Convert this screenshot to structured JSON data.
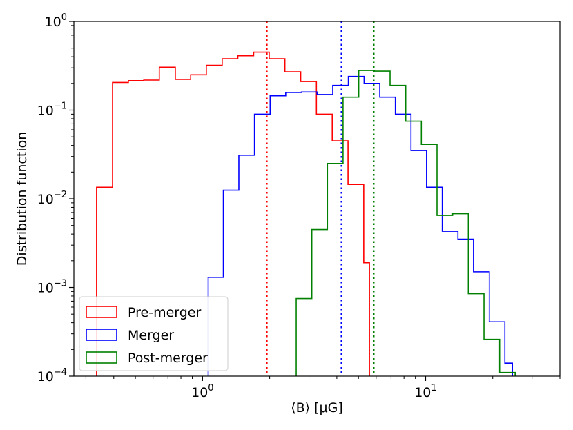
{
  "chart_data": {
    "type": "histogram-step",
    "xlabel": "⟨B⟩ [μG]",
    "ylabel": "Distribution function",
    "xscale": "log",
    "yscale": "log",
    "xlim": [
      0.265,
      40
    ],
    "ylim": [
      0.0001,
      1
    ],
    "x_ticks": [
      {
        "value": 1,
        "base": "10",
        "exp": "0"
      },
      {
        "value": 10,
        "base": "10",
        "exp": "1"
      }
    ],
    "y_ticks": [
      {
        "value": 0.0001,
        "base": "10",
        "exp": "−4"
      },
      {
        "value": 0.001,
        "base": "10",
        "exp": "−3"
      },
      {
        "value": 0.01,
        "base": "10",
        "exp": "−2"
      },
      {
        "value": 0.1,
        "base": "10",
        "exp": "−1"
      },
      {
        "value": 1,
        "base": "10",
        "exp": "0"
      }
    ],
    "legend_position": "lower-left",
    "series": [
      {
        "name": "Pre-merger",
        "color": "#ff0000",
        "median": 1.94,
        "edges": [
          0.335,
          0.395,
          0.465,
          0.545,
          0.64,
          0.755,
          0.885,
          1.04,
          1.225,
          1.44,
          1.695,
          1.99,
          2.34,
          2.755,
          3.24,
          3.815,
          4.49,
          5.28,
          5.6
        ],
        "values": [
          0.0135,
          0.205,
          0.215,
          0.218,
          0.305,
          0.222,
          0.25,
          0.32,
          0.38,
          0.41,
          0.45,
          0.38,
          0.27,
          0.21,
          0.09,
          0.045,
          0.0145,
          0.0019
        ]
      },
      {
        "name": "Merger",
        "color": "#0000ff",
        "median": 4.2,
        "edges": [
          1.06,
          1.24,
          1.455,
          1.71,
          2.01,
          2.36,
          2.775,
          3.26,
          3.835,
          4.505,
          5.3,
          6.23,
          7.32,
          8.6,
          10.1,
          11.88,
          13.96,
          16.4,
          19.3,
          22.66,
          24.5
        ],
        "values": [
          0.0013,
          0.0125,
          0.031,
          0.09,
          0.145,
          0.158,
          0.16,
          0.15,
          0.19,
          0.24,
          0.2,
          0.14,
          0.09,
          0.035,
          0.0135,
          0.0043,
          0.0035,
          0.0015,
          0.00041,
          0.00014
        ]
      },
      {
        "name": "Post-merger",
        "color": "#008000",
        "median": 5.85,
        "edges": [
          2.63,
          3.09,
          3.63,
          4.265,
          5.015,
          5.895,
          6.93,
          8.145,
          9.57,
          11.25,
          13.22,
          15.54,
          18.27,
          21.47,
          25.2
        ],
        "values": [
          0.00075,
          0.0045,
          0.025,
          0.14,
          0.28,
          0.275,
          0.19,
          0.075,
          0.041,
          0.0065,
          0.0068,
          0.00085,
          0.00026,
          0.00011
        ]
      }
    ]
  }
}
